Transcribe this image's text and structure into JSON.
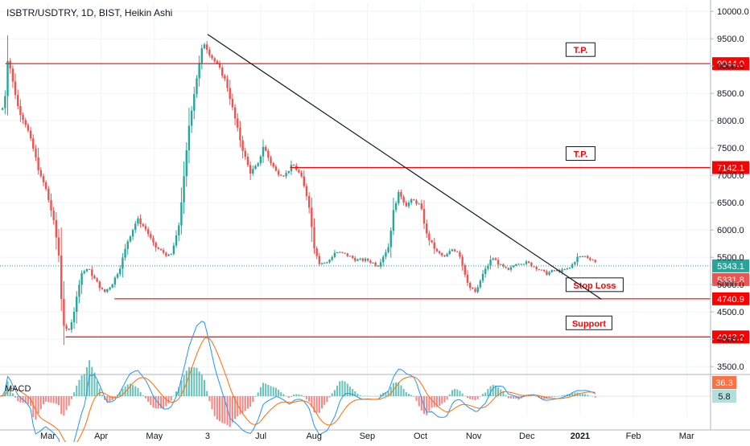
{
  "chart_data": {
    "type": "candlestick",
    "title": "ISBTR/USDTRY, 1D, BIST, Heikin Ashi",
    "price_axis": {
      "ticks": [
        "10000.0",
        "9500.0",
        "9000.0",
        "8500.0",
        "8000.0",
        "7500.0",
        "7000.0",
        "6500.0",
        "6000.0",
        "5500.0",
        "5000.0",
        "4500.0",
        "4000.0",
        "3500.0"
      ],
      "ylim": [
        3400,
        10150
      ]
    },
    "time_axis": {
      "labels": [
        "Mar",
        "Apr",
        "May",
        "3",
        "Jul",
        "Aug",
        "Sep",
        "Oct",
        "Nov",
        "Dec",
        "2021",
        "Feb",
        "Mar"
      ],
      "label_values": [
        2.0,
        3.0,
        4.0,
        5.0,
        6.0,
        7.0,
        8.0,
        9.0,
        10.0,
        11.0,
        12.0,
        13.0,
        14.0
      ],
      "xlim": [
        1.1,
        14.45
      ]
    },
    "colors": {
      "up": "#26a69a",
      "down": "#ef5350",
      "level": "#ff0000",
      "trendline": "#131722",
      "price_line": "#26a69a"
    },
    "price_path": [
      [
        1.1,
        8200
      ],
      [
        1.18,
        8250
      ],
      [
        1.25,
        9200
      ],
      [
        1.32,
        8800
      ],
      [
        1.45,
        8200
      ],
      [
        1.6,
        7900
      ],
      [
        1.75,
        7400
      ],
      [
        1.85,
        7000
      ],
      [
        1.95,
        6800
      ],
      [
        2.1,
        6200
      ],
      [
        2.2,
        5600
      ],
      [
        2.28,
        4300
      ],
      [
        2.38,
        4100
      ],
      [
        2.5,
        4550
      ],
      [
        2.62,
        5200
      ],
      [
        2.75,
        5300
      ],
      [
        2.88,
        5100
      ],
      [
        3.05,
        4850
      ],
      [
        3.2,
        5000
      ],
      [
        3.35,
        5300
      ],
      [
        3.5,
        5800
      ],
      [
        3.68,
        6200
      ],
      [
        3.85,
        6000
      ],
      [
        4.0,
        5700
      ],
      [
        4.15,
        5600
      ],
      [
        4.3,
        5500
      ],
      [
        4.45,
        6000
      ],
      [
        4.55,
        6900
      ],
      [
        4.65,
        7900
      ],
      [
        4.78,
        8700
      ],
      [
        4.92,
        9450
      ],
      [
        5.05,
        9200
      ],
      [
        5.2,
        9000
      ],
      [
        5.35,
        8700
      ],
      [
        5.5,
        8100
      ],
      [
        5.65,
        7500
      ],
      [
        5.8,
        7050
      ],
      [
        5.95,
        7200
      ],
      [
        6.05,
        7550
      ],
      [
        6.15,
        7300
      ],
      [
        6.3,
        7050
      ],
      [
        6.45,
        7000
      ],
      [
        6.6,
        7200
      ],
      [
        6.75,
        7000
      ],
      [
        6.9,
        6500
      ],
      [
        7.0,
        5700
      ],
      [
        7.1,
        5400
      ],
      [
        7.25,
        5400
      ],
      [
        7.4,
        5600
      ],
      [
        7.6,
        5550
      ],
      [
        7.8,
        5450
      ],
      [
        8.0,
        5450
      ],
      [
        8.2,
        5350
      ],
      [
        8.4,
        5700
      ],
      [
        8.5,
        6400
      ],
      [
        8.6,
        6700
      ],
      [
        8.72,
        6450
      ],
      [
        8.85,
        6550
      ],
      [
        9.0,
        6450
      ],
      [
        9.12,
        5900
      ],
      [
        9.3,
        5600
      ],
      [
        9.45,
        5500
      ],
      [
        9.6,
        5650
      ],
      [
        9.72,
        5600
      ],
      [
        9.82,
        5250
      ],
      [
        9.92,
        4950
      ],
      [
        10.05,
        4850
      ],
      [
        10.15,
        5150
      ],
      [
        10.35,
        5500
      ],
      [
        10.5,
        5350
      ],
      [
        10.65,
        5250
      ],
      [
        10.8,
        5400
      ],
      [
        11.0,
        5400
      ],
      [
        11.2,
        5300
      ],
      [
        11.35,
        5200
      ],
      [
        11.5,
        5250
      ],
      [
        11.65,
        5250
      ],
      [
        11.8,
        5300
      ],
      [
        11.95,
        5500
      ],
      [
        12.1,
        5520
      ],
      [
        12.25,
        5450
      ],
      [
        12.33,
        5343
      ]
    ],
    "levels": [
      {
        "name": "T.P.",
        "value": 9044.0,
        "label": "9044.0",
        "x_start": 1.2,
        "tag_x": 11.75
      },
      {
        "name": "T.P.",
        "value": 7142.1,
        "label": "7142.1",
        "x_start": 6.55,
        "tag_x": 11.75
      },
      {
        "name": "Stop Loss",
        "value": 4740.9,
        "label": "4740.9",
        "x_start": 3.25,
        "tag_x": 11.75
      },
      {
        "name": "Support",
        "value": 4043.2,
        "label": "4043.2",
        "x_start": 2.33,
        "tag_x": 11.75
      }
    ],
    "trendline": {
      "from": [
        5.0,
        9580
      ],
      "to": [
        12.4,
        4730
      ]
    },
    "current_price": {
      "value": 5343.1,
      "label": "5343.1"
    },
    "second_price": {
      "value": 5331.8,
      "label": "5331.8"
    },
    "macd": {
      "name": "MACD",
      "values": [
        36.3,
        5.8
      ],
      "labels": [
        "36.3",
        "5.8"
      ],
      "macd_color": "#2196f3",
      "signal_color": "#ff6d00"
    }
  }
}
